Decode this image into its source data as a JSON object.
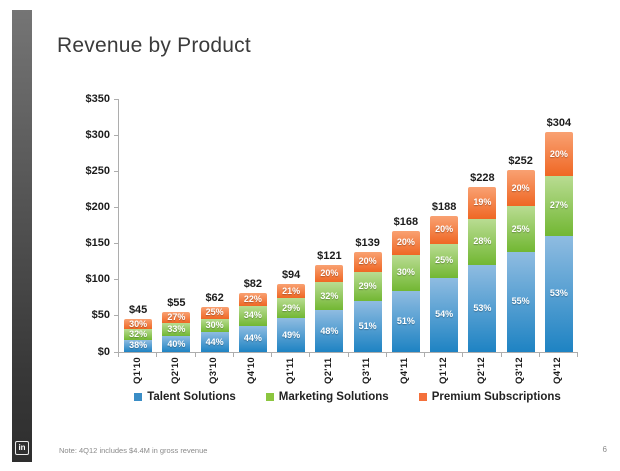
{
  "slide": {
    "title": "Revenue by Product",
    "footer_note": "Note: 4Q12 includes $4.4M in gross revenue",
    "page_number": "6",
    "logo_text": "in"
  },
  "colors": {
    "axis": "#ADADAD",
    "talent": {
      "top": "#8FBCE1",
      "bottom": "#1E83C3",
      "swatch": "#3A8DC6"
    },
    "marketing": {
      "top": "#B9DC92",
      "bottom": "#72B733",
      "swatch": "#8CC63F"
    },
    "premium": {
      "top": "#F9A172",
      "bottom": "#EF6724",
      "swatch": "#F4703B"
    }
  },
  "chart_data": {
    "type": "bar",
    "stacked": true,
    "title": "Revenue by Product",
    "unit": "$M",
    "categories": [
      "Q1'10",
      "Q2'10",
      "Q3'10",
      "Q4'10",
      "Q1'11",
      "Q2'11",
      "Q3'11",
      "Q4'11",
      "Q1'12",
      "Q2'12",
      "Q3'12",
      "Q4'12"
    ],
    "totals": [
      45,
      55,
      62,
      82,
      94,
      121,
      139,
      168,
      188,
      228,
      252,
      304
    ],
    "total_labels": [
      "$45",
      "$55",
      "$62",
      "$82",
      "$94",
      "$121",
      "$139",
      "$168",
      "$188",
      "$228",
      "$252",
      "$304"
    ],
    "series": [
      {
        "name": "Talent Solutions",
        "color_key": "talent",
        "percentages": [
          38,
          40,
          44,
          44,
          49,
          48,
          51,
          51,
          54,
          53,
          55,
          53
        ]
      },
      {
        "name": "Marketing Solutions",
        "color_key": "marketing",
        "percentages": [
          32,
          33,
          30,
          34,
          29,
          32,
          29,
          30,
          25,
          28,
          25,
          27
        ]
      },
      {
        "name": "Premium Subscriptions",
        "color_key": "premium",
        "percentages": [
          30,
          27,
          25,
          22,
          21,
          20,
          20,
          20,
          20,
          19,
          20,
          20
        ]
      }
    ],
    "y_axis": {
      "min": 0,
      "max": 350,
      "step": 50,
      "tick_prefix": "$"
    },
    "legend_position": "bottom",
    "gridlines": false
  }
}
